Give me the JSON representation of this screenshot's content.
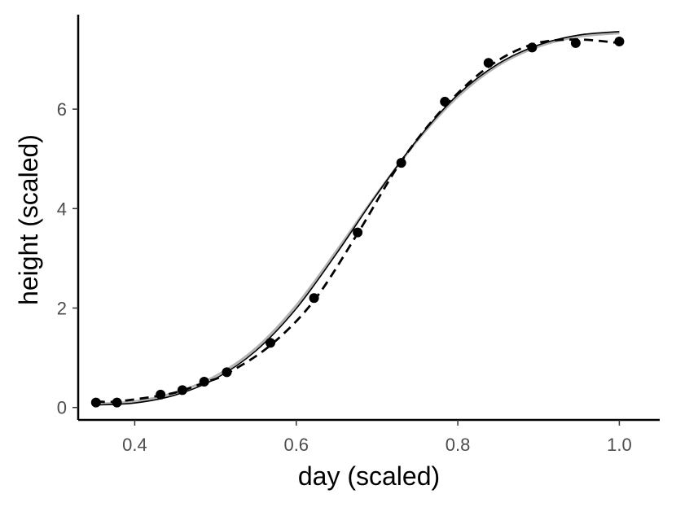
{
  "chart_data": {
    "type": "scatter",
    "xlabel": "day (scaled)",
    "ylabel": "height (scaled)",
    "xlim": [
      0.33,
      1.05
    ],
    "ylim": [
      -0.25,
      7.9
    ],
    "xticks": [
      0.4,
      0.6,
      0.8,
      1.0
    ],
    "xtick_labels": [
      "0.4",
      "0.6",
      "0.8",
      "1.0"
    ],
    "yticks": [
      0,
      2,
      4,
      6
    ],
    "ytick_labels": [
      "0",
      "2",
      "4",
      "6"
    ],
    "grid": false,
    "legend": "none",
    "points": {
      "x": [
        0.352,
        0.378,
        0.432,
        0.459,
        0.486,
        0.514,
        0.568,
        0.622,
        0.676,
        0.73,
        0.784,
        0.838,
        0.892,
        0.946,
        1.0
      ],
      "y": [
        0.1,
        0.1,
        0.26,
        0.35,
        0.52,
        0.71,
        1.3,
        2.2,
        3.52,
        4.92,
        6.15,
        6.93,
        7.24,
        7.33,
        7.36
      ]
    },
    "series": [
      {
        "style": "dashed",
        "color": "#000000",
        "x": [
          0.352,
          0.378,
          0.432,
          0.459,
          0.486,
          0.514,
          0.568,
          0.622,
          0.676,
          0.73,
          0.784,
          0.838,
          0.892,
          0.946,
          1.0
        ],
        "y": [
          0.12,
          0.12,
          0.24,
          0.34,
          0.5,
          0.68,
          1.25,
          2.15,
          3.5,
          4.95,
          6.05,
          6.85,
          7.3,
          7.4,
          7.33
        ]
      },
      {
        "style": "solid",
        "color": "#000000",
        "x": [
          0.352,
          0.4,
          0.45,
          0.5,
          0.55,
          0.6,
          0.65,
          0.7,
          0.75,
          0.8,
          0.85,
          0.9,
          0.95,
          1.0
        ],
        "y": [
          0.05,
          0.09,
          0.25,
          0.58,
          1.14,
          1.99,
          3.1,
          4.29,
          5.39,
          6.29,
          6.91,
          7.29,
          7.49,
          7.56
        ]
      },
      {
        "style": "solid",
        "color": "#b3b3b3",
        "x": [
          0.352,
          0.4,
          0.45,
          0.5,
          0.55,
          0.6,
          0.65,
          0.7,
          0.75,
          0.8,
          0.85,
          0.9,
          0.95,
          1.0
        ],
        "y": [
          0.07,
          0.12,
          0.3,
          0.63,
          1.19,
          2.05,
          3.15,
          4.3,
          5.37,
          6.25,
          6.88,
          7.26,
          7.46,
          7.53
        ]
      }
    ]
  }
}
